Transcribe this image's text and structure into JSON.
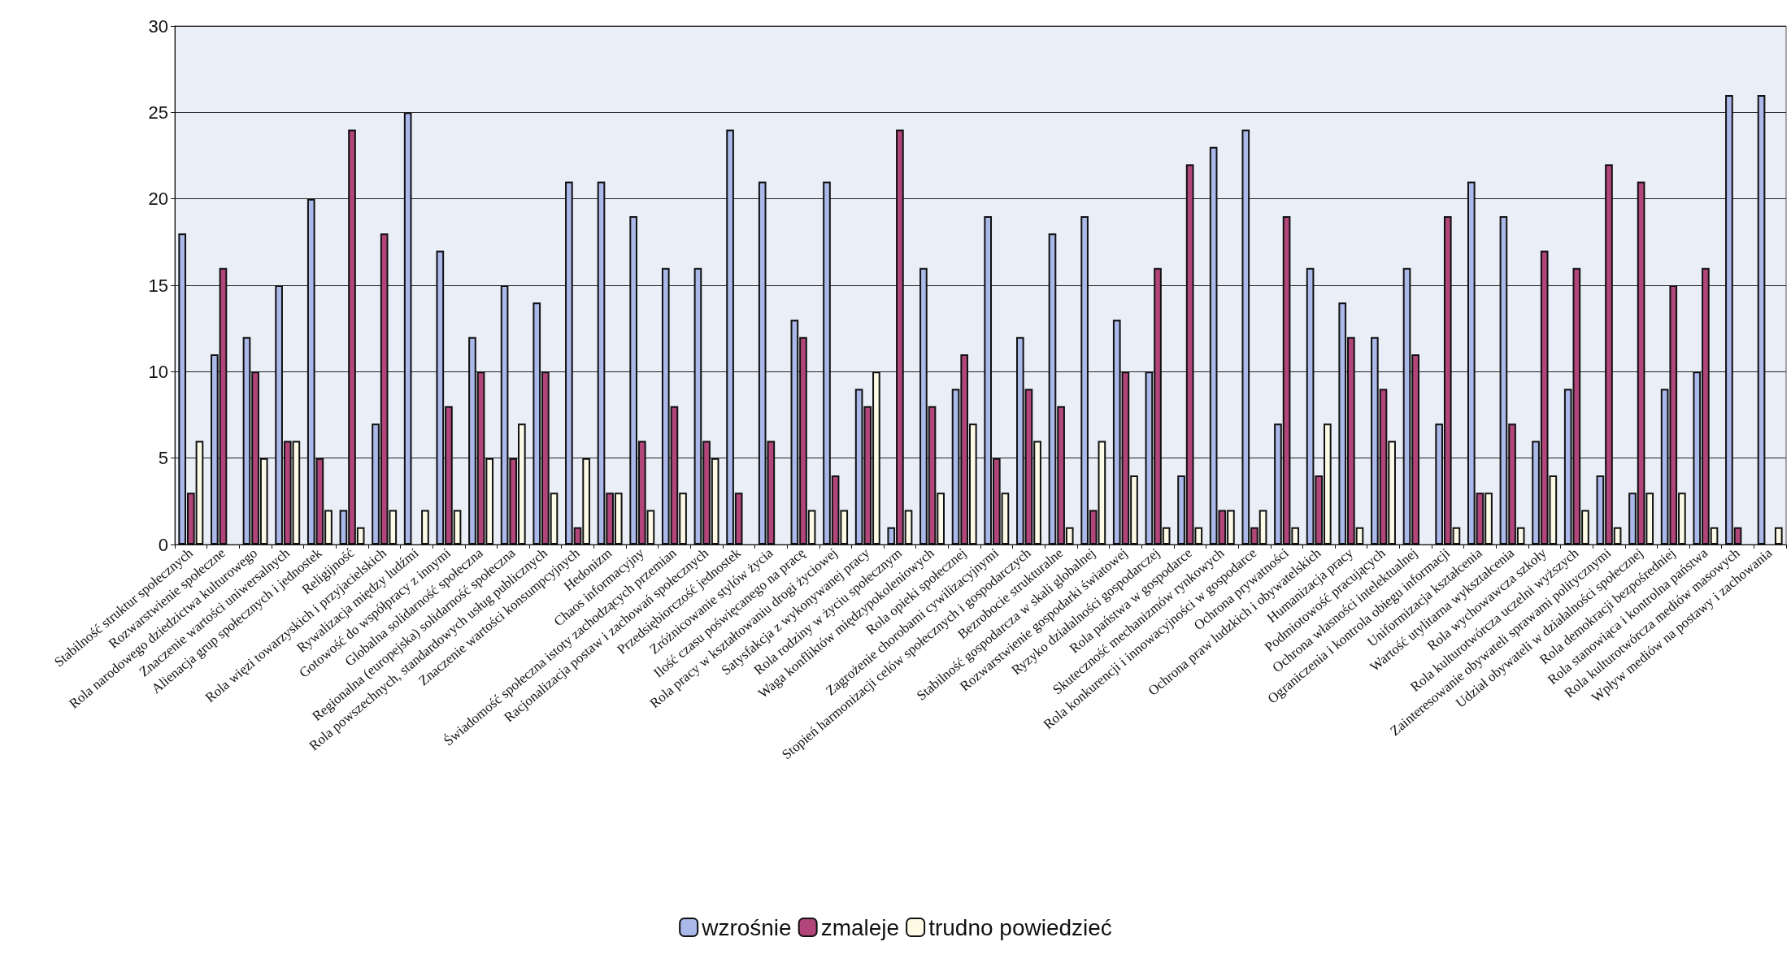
{
  "chart_data": {
    "type": "bar",
    "categories": [
      "Stabilność struktur społecznych",
      "Rozwarstwienie społeczne",
      "Rola narodowego dziedzictwa kulturowego",
      "Znaczenie wartości uniwersalnych",
      "Alienacja grup społecznych i jednostek",
      "Religijność",
      "Rola więzi towarzyskich i przyjacielskich",
      "Rywalizacja między ludźmi",
      "Gotowość do współpracy z innymi",
      "Globalna solidarność społeczna",
      "Regionalna (europejska) solidarność społeczna",
      "Rola powszechnych, standardowych usług publicznych",
      "Znaczenie wartości konsumpcyjnych",
      "Hedonizm",
      "Chaos informacyjny",
      "Świadomość społeczna istoty zachodzących przemian",
      "Racjonalizacja postaw i zachowań społecznych",
      "Przedsiębiorczość jednostek",
      "Zróżnicowanie stylów życia",
      "Ilość czasu poświęcanego na pracę",
      "Rola pracy w kształtowaniu drogi życiowej",
      "Satysfakcja z wykonywanej pracy",
      "Rola rodziny w życiu społecznym",
      "Waga konfliktów międzypokoleniowych",
      "Rola opieki społecznej",
      "Zagrożenie chorobami cywilizacyjnymi",
      "Stopień harmonizacji celów społecznych i gospodarczych",
      "Bezrobocie strukturalne",
      "Stabilność gospodarcza w skali globalnej",
      "Rozwarstwienie gospodarki światowej",
      "Ryzyko działalności gospodarczej",
      "Rola państwa w gospodarce",
      "Skuteczność mechanizmów rynkowych",
      "Rola konkurencji i innowacyjności w gospodarce",
      "Ochrona prywatności",
      "Ochrona praw ludzkich i obywatelskich",
      "Humanizacja pracy",
      "Podmiotowość pracujących",
      "Ochrona własności intelektualnej",
      "Ograniczenia i kontrola obiegu informacji",
      "Uniformizacja kształcenia",
      "Wartość utylitarna wykształcenia",
      "Rola wychowawcza szkoły",
      "Rola kulturotwórcza uczelni wyższych",
      "Zainteresowanie obywateli sprawami politycznymi",
      "Udział obywateli w działalności społecznej",
      "Rola demokracji bezpośredniej",
      "Rola stanowiąca i kontrolna państwa",
      "Rola kulturotwórcza mediów masowych",
      "Wpływ mediów na postawy i zachowania"
    ],
    "series": [
      {
        "name": "wzrośnie",
        "color": "#aab8ea",
        "values": [
          18,
          11,
          12,
          15,
          20,
          2,
          7,
          25,
          17,
          12,
          15,
          14,
          21,
          21,
          19,
          16,
          16,
          24,
          21,
          13,
          21,
          9,
          1,
          16,
          9,
          19,
          12,
          18,
          19,
          13,
          10,
          4,
          23,
          24,
          7,
          16,
          14,
          12,
          16,
          7,
          21,
          19,
          6,
          9,
          4,
          3,
          9,
          10,
          26,
          26
        ]
      },
      {
        "name": "zmaleje",
        "color": "#b2457a",
        "values": [
          3,
          16,
          10,
          6,
          5,
          24,
          18,
          null,
          8,
          10,
          5,
          10,
          1,
          3,
          6,
          8,
          6,
          3,
          6,
          12,
          4,
          8,
          24,
          8,
          11,
          5,
          9,
          8,
          2,
          10,
          16,
          22,
          2,
          1,
          19,
          4,
          12,
          9,
          11,
          19,
          3,
          7,
          17,
          16,
          22,
          21,
          15,
          16,
          1,
          null
        ]
      },
      {
        "name": "trudno powiedzieć",
        "color": "#fdfbe6",
        "values": [
          6,
          null,
          5,
          6,
          2,
          1,
          2,
          2,
          2,
          5,
          7,
          3,
          5,
          3,
          2,
          3,
          5,
          null,
          null,
          2,
          2,
          10,
          2,
          3,
          7,
          3,
          6,
          1,
          6,
          4,
          1,
          1,
          2,
          2,
          1,
          7,
          1,
          6,
          null,
          1,
          3,
          1,
          4,
          2,
          1,
          3,
          3,
          1,
          null,
          1
        ]
      }
    ],
    "ylim": [
      0,
      30
    ],
    "yticks": [
      0,
      5,
      10,
      15,
      20,
      25,
      30
    ],
    "grid": "y",
    "legend": "bottom"
  }
}
